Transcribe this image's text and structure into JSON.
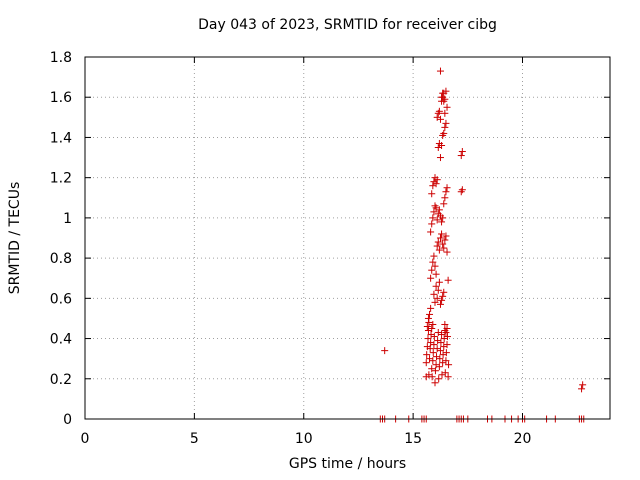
{
  "chart_data": {
    "type": "scatter",
    "title": "Day 043 of 2023, SRMTID for receiver cibg",
    "xlabel": "GPS time / hours",
    "ylabel": "SRMTID / TECUs",
    "xlim": [
      0,
      24
    ],
    "ylim": [
      0,
      1.8
    ],
    "xticks": [
      0,
      5,
      10,
      15,
      20
    ],
    "yticks": [
      0,
      0.2,
      0.4,
      0.6,
      0.8,
      1,
      1.2,
      1.4,
      1.6,
      1.8
    ],
    "xtick_labels": [
      "0",
      "5",
      "10",
      "15",
      "20"
    ],
    "ytick_labels": [
      "0",
      "0.2",
      "0.4",
      "0.6",
      "0.8",
      "1",
      "1.2",
      "1.4",
      "1.6",
      "1.8"
    ],
    "grid": true,
    "marker": "+",
    "color": "#cc0000",
    "series": [
      {
        "name": "cibg",
        "x": [
          13.7,
          15.6,
          15.6,
          15.62,
          15.65,
          15.68,
          15.7,
          15.72,
          15.75,
          15.78,
          15.8,
          15.82,
          15.85,
          15.87,
          15.9,
          15.92,
          15.95,
          15.97,
          16.0,
          16.02,
          16.05,
          16.07,
          16.1,
          16.12,
          16.15,
          16.17,
          16.2,
          16.22,
          16.25,
          16.27,
          16.3,
          16.32,
          16.35,
          16.37,
          16.4,
          16.42,
          16.45,
          16.47,
          16.5,
          16.52,
          16.55,
          16.57,
          16.6,
          16.62,
          15.65,
          15.7,
          15.72,
          15.75,
          15.8,
          15.85,
          15.9,
          15.95,
          16.0,
          16.05,
          16.1,
          16.15,
          16.2,
          16.25,
          16.3,
          16.35,
          16.4,
          16.45,
          16.5,
          16.55,
          16.6,
          15.8,
          15.85,
          15.9,
          15.95,
          16.0,
          16.05,
          16.1,
          16.15,
          16.2,
          16.25,
          16.3,
          16.35,
          16.4,
          16.45,
          16.5,
          16.55,
          15.8,
          15.85,
          15.9,
          15.95,
          16.0,
          16.05,
          16.1,
          16.15,
          16.2,
          16.25,
          16.3,
          16.35,
          16.4,
          16.45,
          16.5,
          16.55,
          15.85,
          15.9,
          15.95,
          16.0,
          16.05,
          16.1,
          16.15,
          16.2,
          16.25,
          16.3,
          16.35,
          16.4,
          16.45,
          16.5,
          16.1,
          16.15,
          16.2,
          16.25,
          16.3,
          16.35,
          16.4,
          16.45,
          16.5,
          16.55,
          16.25,
          16.3,
          16.35,
          16.4,
          16.45,
          17.2,
          17.25,
          17.2,
          17.25,
          22.7,
          22.75,
          13.5,
          13.6,
          13.7,
          14.2,
          14.8,
          15.4,
          15.5,
          15.6,
          17.0,
          17.1,
          17.2,
          17.3,
          17.5,
          18.4,
          18.6,
          19.2,
          19.5,
          19.8,
          20.0,
          20.1,
          21.1,
          21.5,
          22.6,
          22.7,
          22.8
        ],
        "y": [
          0.34,
          0.21,
          0.28,
          0.32,
          0.36,
          0.4,
          0.44,
          0.22,
          0.3,
          0.35,
          0.38,
          0.42,
          0.25,
          0.21,
          0.29,
          0.33,
          0.37,
          0.41,
          0.18,
          0.24,
          0.27,
          0.31,
          0.35,
          0.39,
          0.43,
          0.2,
          0.26,
          0.3,
          0.34,
          0.38,
          0.42,
          0.22,
          0.28,
          0.32,
          0.36,
          0.4,
          0.44,
          0.23,
          0.29,
          0.33,
          0.37,
          0.41,
          0.21,
          0.27,
          0.46,
          0.5,
          0.48,
          0.52,
          0.55,
          0.45,
          0.47,
          0.62,
          0.58,
          0.66,
          0.6,
          0.64,
          0.68,
          0.57,
          0.59,
          0.61,
          0.63,
          0.47,
          0.43,
          0.45,
          0.69,
          0.7,
          0.74,
          0.78,
          0.81,
          0.76,
          0.72,
          0.86,
          0.88,
          0.84,
          0.9,
          0.92,
          0.87,
          0.85,
          0.89,
          0.91,
          0.83,
          0.93,
          0.97,
          1.0,
          1.03,
          1.06,
          1.05,
          0.99,
          1.02,
          1.04,
          1.01,
          0.98,
          1.0,
          1.07,
          1.1,
          1.13,
          1.15,
          1.12,
          1.16,
          1.18,
          1.2,
          1.17,
          1.19,
          1.35,
          1.37,
          1.3,
          1.36,
          1.41,
          1.42,
          1.45,
          1.47,
          1.5,
          1.52,
          1.53,
          1.49,
          1.58,
          1.6,
          1.62,
          1.59,
          1.63,
          1.55,
          1.73,
          1.6,
          1.62,
          1.58,
          1.52,
          1.31,
          1.33,
          1.13,
          1.14,
          0.15,
          0.17,
          0.0,
          0.0,
          0.0,
          0.0,
          0.0,
          0.0,
          0.0,
          0.0,
          0.0,
          0.0,
          0.0,
          0.0,
          0.0,
          0.0,
          0.0,
          0.0,
          0.0,
          0.0,
          0.0,
          0.0,
          0.0,
          0.0,
          0.0,
          0.0,
          0.0
        ]
      }
    ]
  }
}
